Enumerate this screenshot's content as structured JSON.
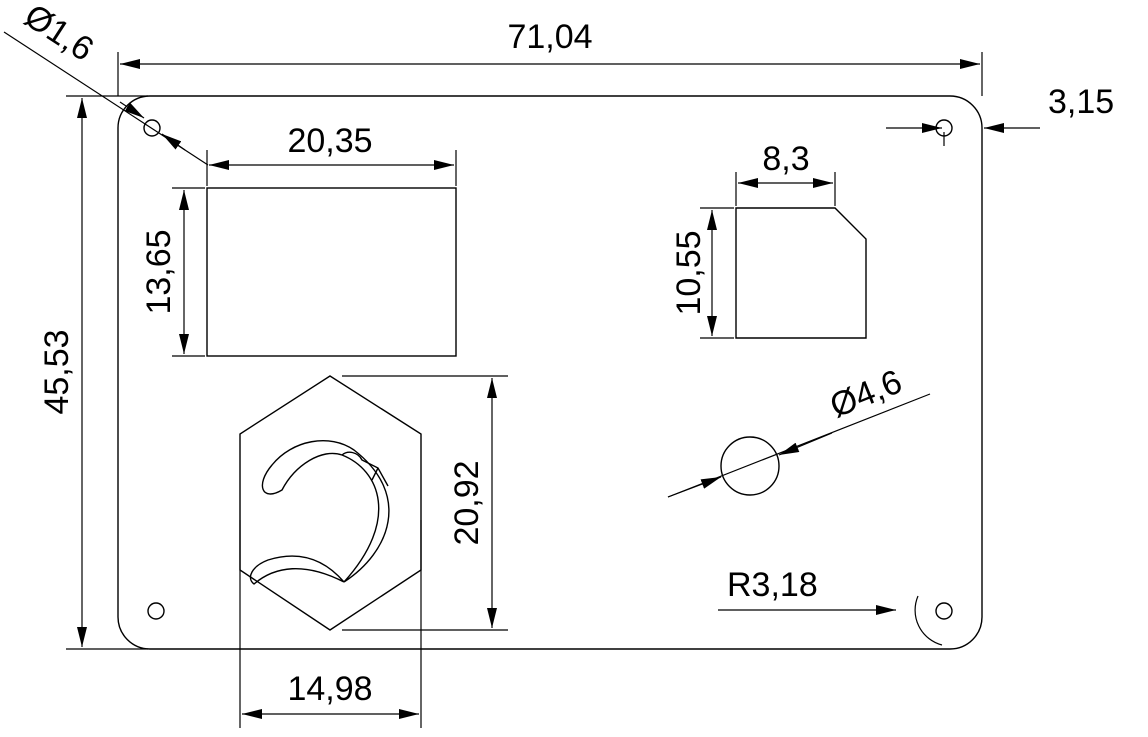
{
  "drawing": {
    "dimensions": {
      "hole_dia_small": "Ø1,6",
      "overall_width": "71,04",
      "hole_offset": "3,15",
      "rect_cutout_width": "20,35",
      "rect_cutout_height": "13,65",
      "small_cutout_width": "8,3",
      "small_cutout_height": "10,55",
      "overall_height": "45,53",
      "round_hole_dia": "Ø4,6",
      "logo_height": "20,92",
      "corner_radius": "R3,18",
      "logo_width": "14,98"
    }
  }
}
